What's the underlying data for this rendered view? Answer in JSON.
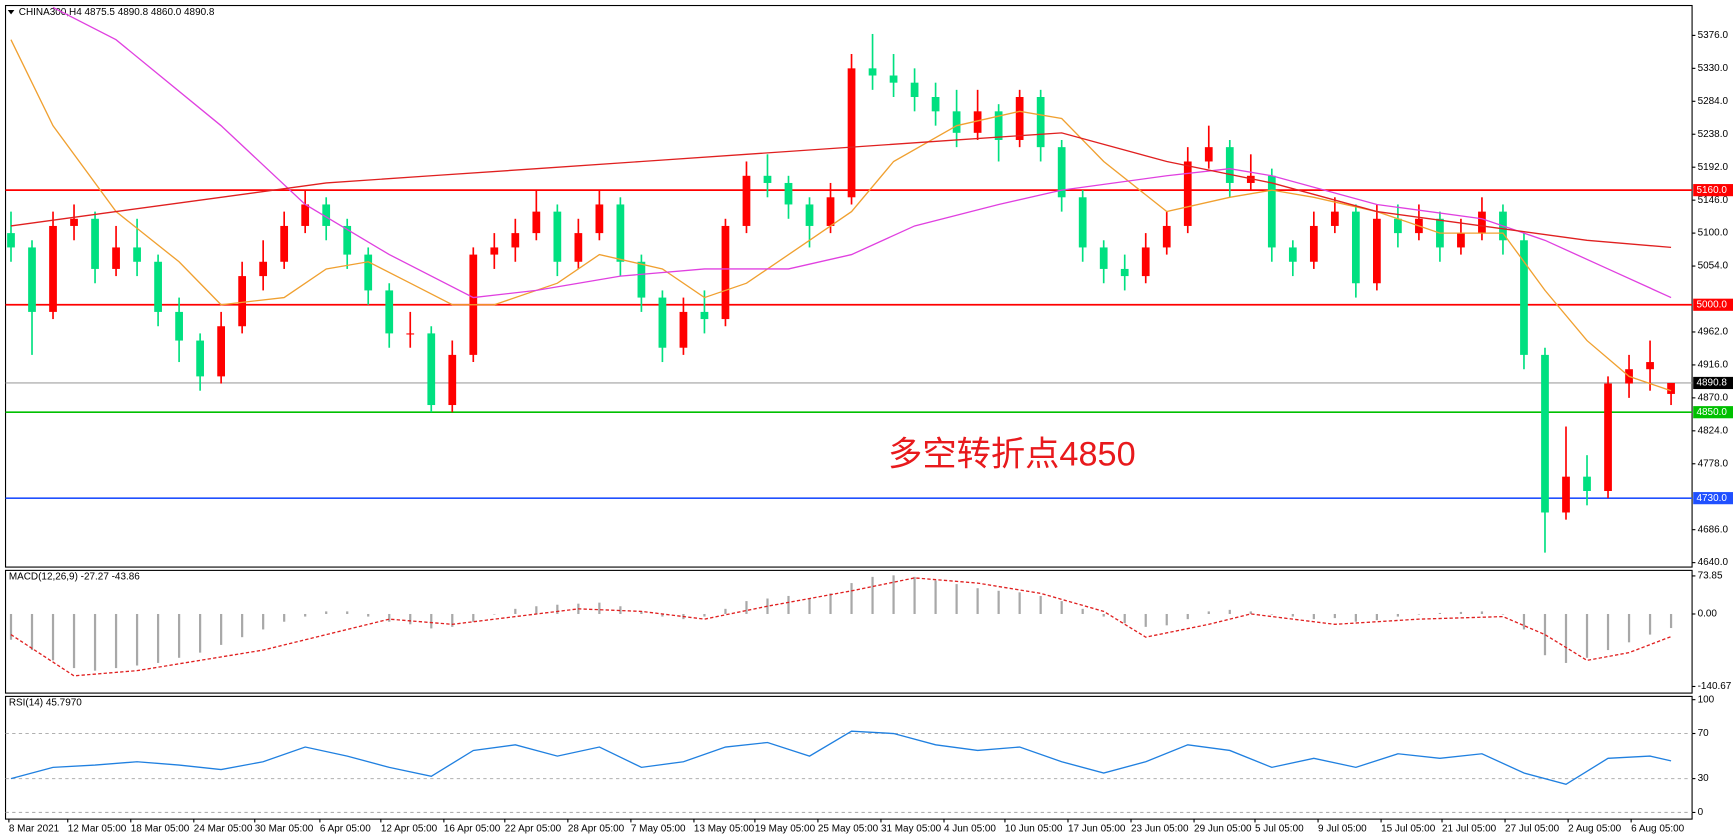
{
  "chart_data": [
    {
      "type": "candlestick",
      "title": "CHINA300,H4  4875.5 4890.8 4860.0 4890.8",
      "annotation": "多空转折点4850",
      "annotation_color": "#e8191c",
      "up_color": "#ff0000",
      "down_color": "#00e080",
      "xlim": [
        -0.26,
        80
      ],
      "ylim": [
        4633.8,
        5417.7
      ],
      "yticks": [
        {
          "value": 5376,
          "label": "5376.0"
        },
        {
          "value": 5330,
          "label": "5330.0"
        },
        {
          "value": 5284,
          "label": "5284.0"
        },
        {
          "value": 5238,
          "label": "5238.0"
        },
        {
          "value": 5192,
          "label": "5192.0"
        },
        {
          "value": 5146,
          "label": "5146.0"
        },
        {
          "value": 5100,
          "label": "5100.0"
        },
        {
          "value": 5054,
          "label": "5054.0"
        },
        {
          "value": 4962,
          "label": "4962.0"
        },
        {
          "value": 4916,
          "label": "4916.0"
        },
        {
          "value": 4870,
          "label": "4870.0"
        },
        {
          "value": 4824,
          "label": "4824.0"
        },
        {
          "value": 4778,
          "label": "4778.0"
        },
        {
          "value": 4686,
          "label": "4686.0"
        },
        {
          "value": 4640,
          "label": "4640.0"
        }
      ],
      "hlines": [
        {
          "value": 5160,
          "label": "5160.0",
          "color": "#ff0000",
          "label_fill": "#ff0000"
        },
        {
          "value": 5000,
          "label": "5000.0",
          "color": "#ff0000",
          "label_fill": "#ff0000"
        },
        {
          "value": 4890.8,
          "label": "4890.8",
          "color": "#a0a0a0",
          "label_fill": "#000000"
        },
        {
          "value": 4850,
          "label": "4850.0",
          "color": "#00c000",
          "label_fill": "#00c000"
        },
        {
          "value": 4730,
          "label": "4730.0",
          "color": "#2050ff",
          "label_fill": "#2050ff"
        }
      ],
      "xticks": [
        {
          "value": -0.1,
          "label": "8 Mar 2021"
        },
        {
          "value": 2.7,
          "label": "12 Mar 05:00"
        },
        {
          "value": 5.7,
          "label": "18 Mar 05:00"
        },
        {
          "value": 8.7,
          "label": "24 Mar 05:00"
        },
        {
          "value": 11.6,
          "label": "30 Mar 05:00"
        },
        {
          "value": 14.7,
          "label": "6 Apr 05:00"
        },
        {
          "value": 17.6,
          "label": "12 Apr 05:00"
        },
        {
          "value": 20.6,
          "label": "16 Apr 05:00"
        },
        {
          "value": 23.5,
          "label": "22 Apr 05:00"
        },
        {
          "value": 26.5,
          "label": "28 Apr 05:00"
        },
        {
          "value": 29.5,
          "label": "7 May 05:00"
        },
        {
          "value": 32.5,
          "label": "13 May 05:00"
        },
        {
          "value": 35.4,
          "label": "19 May 05:00"
        },
        {
          "value": 38.4,
          "label": "25 May 05:00"
        },
        {
          "value": 41.4,
          "label": "31 May 05:00"
        },
        {
          "value": 44.4,
          "label": "4 Jun 05:00"
        },
        {
          "value": 47.3,
          "label": "10 Jun 05:00"
        },
        {
          "value": 50.3,
          "label": "17 Jun 05:00"
        },
        {
          "value": 53.3,
          "label": "23 Jun 05:00"
        },
        {
          "value": 56.3,
          "label": "29 Jun 05:00"
        },
        {
          "value": 59.2,
          "label": "5 Jul 05:00"
        },
        {
          "value": 62.2,
          "label": "9 Jul 05:00"
        },
        {
          "value": 65.2,
          "label": "15 Jul 05:00"
        },
        {
          "value": 68.1,
          "label": "21 Jul 05:00"
        },
        {
          "value": 71.1,
          "label": "27 Jul 05:00"
        },
        {
          "value": 74.1,
          "label": "2 Aug 05:00"
        },
        {
          "value": 77.1,
          "label": "6 Aug 05:00"
        }
      ],
      "ohlc": [
        [
          5100,
          5130,
          5060,
          5080
        ],
        [
          5080,
          5090,
          4930,
          4990
        ],
        [
          4990,
          5130,
          4980,
          5110
        ],
        [
          5110,
          5140,
          5090,
          5120
        ],
        [
          5120,
          5130,
          5030,
          5050
        ],
        [
          5050,
          5110,
          5040,
          5080
        ],
        [
          5080,
          5120,
          5040,
          5060
        ],
        [
          5060,
          5070,
          4970,
          4990
        ],
        [
          4990,
          5010,
          4920,
          4950
        ],
        [
          4950,
          4960,
          4880,
          4900
        ],
        [
          4900,
          4990,
          4890,
          4970
        ],
        [
          4970,
          5060,
          4960,
          5040
        ],
        [
          5040,
          5090,
          5020,
          5060
        ],
        [
          5060,
          5130,
          5050,
          5110
        ],
        [
          5110,
          5160,
          5100,
          5140
        ],
        [
          5140,
          5150,
          5090,
          5110
        ],
        [
          5110,
          5120,
          5050,
          5070
        ],
        [
          5070,
          5080,
          5000,
          5020
        ],
        [
          5020,
          5030,
          4940,
          4960
        ],
        [
          4960,
          4990,
          4940,
          4960
        ],
        [
          4960,
          4970,
          4850,
          4860
        ],
        [
          4860,
          4950,
          4850,
          4930
        ],
        [
          4930,
          5080,
          4920,
          5070
        ],
        [
          5070,
          5100,
          5050,
          5080
        ],
        [
          5080,
          5120,
          5060,
          5100
        ],
        [
          5100,
          5160,
          5090,
          5130
        ],
        [
          5130,
          5140,
          5040,
          5060
        ],
        [
          5060,
          5120,
          5050,
          5100
        ],
        [
          5100,
          5160,
          5090,
          5140
        ],
        [
          5140,
          5150,
          5040,
          5060
        ],
        [
          5060,
          5070,
          4990,
          5010
        ],
        [
          5010,
          5020,
          4920,
          4940
        ],
        [
          4940,
          5010,
          4930,
          4990
        ],
        [
          4990,
          5020,
          4960,
          4980
        ],
        [
          4980,
          5120,
          4970,
          5110
        ],
        [
          5110,
          5200,
          5100,
          5180
        ],
        [
          5180,
          5210,
          5150,
          5170
        ],
        [
          5170,
          5180,
          5120,
          5140
        ],
        [
          5140,
          5150,
          5080,
          5110
        ],
        [
          5110,
          5170,
          5100,
          5150
        ],
        [
          5150,
          5350,
          5140,
          5330
        ],
        [
          5330,
          5378,
          5300,
          5320
        ],
        [
          5320,
          5350,
          5290,
          5310
        ],
        [
          5310,
          5330,
          5270,
          5290
        ],
        [
          5290,
          5310,
          5250,
          5270
        ],
        [
          5270,
          5300,
          5220,
          5240
        ],
        [
          5240,
          5300,
          5230,
          5270
        ],
        [
          5270,
          5280,
          5200,
          5230
        ],
        [
          5230,
          5300,
          5220,
          5290
        ],
        [
          5290,
          5300,
          5200,
          5220
        ],
        [
          5220,
          5230,
          5130,
          5150
        ],
        [
          5150,
          5160,
          5060,
          5080
        ],
        [
          5080,
          5090,
          5030,
          5050
        ],
        [
          5050,
          5070,
          5020,
          5040
        ],
        [
          5040,
          5100,
          5030,
          5080
        ],
        [
          5080,
          5130,
          5070,
          5110
        ],
        [
          5110,
          5220,
          5100,
          5200
        ],
        [
          5200,
          5250,
          5190,
          5220
        ],
        [
          5220,
          5230,
          5150,
          5170
        ],
        [
          5170,
          5210,
          5160,
          5180
        ],
        [
          5180,
          5190,
          5060,
          5080
        ],
        [
          5080,
          5090,
          5040,
          5060
        ],
        [
          5060,
          5130,
          5050,
          5110
        ],
        [
          5110,
          5150,
          5100,
          5130
        ],
        [
          5130,
          5140,
          5010,
          5030
        ],
        [
          5030,
          5140,
          5020,
          5120
        ],
        [
          5120,
          5140,
          5080,
          5100
        ],
        [
          5100,
          5140,
          5090,
          5120
        ],
        [
          5120,
          5130,
          5060,
          5080
        ],
        [
          5080,
          5120,
          5070,
          5100
        ],
        [
          5100,
          5150,
          5090,
          5130
        ],
        [
          5130,
          5140,
          5070,
          5090
        ],
        [
          5090,
          5100,
          4910,
          4930
        ],
        [
          4930,
          4940,
          4654,
          4710
        ],
        [
          4710,
          4830,
          4700,
          4760
        ],
        [
          4760,
          4790,
          4720,
          4740
        ],
        [
          4740,
          4900,
          4730,
          4890
        ],
        [
          4890,
          4930,
          4870,
          4910
        ],
        [
          4910,
          4950,
          4880,
          4920
        ],
        [
          4875.5,
          4890.8,
          4860.0,
          4890.8
        ]
      ],
      "overlays": [
        {
          "color": "#f0a030",
          "x": [
            0,
            2,
            5,
            8,
            10,
            13,
            15,
            17,
            19,
            21,
            23,
            26,
            28,
            31,
            33,
            35,
            38,
            40,
            42,
            45,
            48,
            50,
            52,
            55,
            58,
            60,
            62,
            65,
            68,
            71,
            73,
            75,
            77,
            79
          ],
          "values": [
            5370,
            5250,
            5130,
            5060,
            5000,
            5010,
            5050,
            5060,
            5030,
            5000,
            5000,
            5030,
            5070,
            5050,
            5010,
            5030,
            5090,
            5130,
            5200,
            5250,
            5270,
            5260,
            5200,
            5130,
            5150,
            5160,
            5150,
            5130,
            5100,
            5100,
            5020,
            4950,
            4900,
            4880
          ]
        },
        {
          "color": "#e040e0",
          "x": [
            2,
            5,
            10,
            14,
            18,
            22,
            25,
            29,
            33,
            37,
            40,
            43,
            47,
            50,
            55,
            58,
            60,
            65,
            70,
            73,
            76,
            79
          ],
          "values": [
            5415,
            5370,
            5250,
            5140,
            5070,
            5010,
            5020,
            5040,
            5050,
            5050,
            5070,
            5110,
            5140,
            5160,
            5180,
            5190,
            5180,
            5140,
            5120,
            5090,
            5050,
            5010
          ]
        },
        {
          "color": "#e02020",
          "x": [
            0,
            5,
            10,
            15,
            20,
            25,
            30,
            35,
            40,
            45,
            50,
            55,
            60,
            65,
            70,
            75,
            79
          ],
          "values": [
            5110,
            5130,
            5150,
            5170,
            5180,
            5190,
            5200,
            5210,
            5220,
            5230,
            5240,
            5200,
            5170,
            5130,
            5110,
            5090,
            5080
          ]
        }
      ]
    },
    {
      "type": "bar",
      "title": "MACD(12,26,9) -27.27 -43.86",
      "color": "#a8a8a8",
      "ylim": [
        -153.5,
        84.6
      ],
      "yticks": [
        73.85,
        {
          "value": 0,
          "label": "0.00"
        },
        -140.67
      ],
      "values": [
        -50,
        -70,
        -90,
        -105,
        -110,
        -105,
        -100,
        -95,
        -85,
        -75,
        -60,
        -45,
        -30,
        -15,
        -5,
        5,
        5,
        -5,
        -15,
        -20,
        -28,
        -25,
        -15,
        0,
        10,
        15,
        18,
        20,
        22,
        15,
        5,
        -5,
        -10,
        -5,
        10,
        25,
        30,
        35,
        30,
        40,
        60,
        72,
        75,
        72,
        65,
        58,
        50,
        45,
        42,
        35,
        25,
        10,
        -5,
        -18,
        -25,
        -22,
        -10,
        5,
        8,
        5,
        0,
        -5,
        -10,
        -8,
        -15,
        -12,
        -5,
        0,
        2,
        4,
        5,
        0,
        -30,
        -80,
        -95,
        -85,
        -70,
        -55,
        -40,
        -27.27
      ],
      "overlays": [
        {
          "color": "#e02020",
          "dashed": true,
          "x": [
            0,
            3,
            6,
            9,
            12,
            15,
            18,
            21,
            24,
            27,
            30,
            33,
            36,
            40,
            43,
            46,
            49,
            52,
            54,
            57,
            59,
            63,
            67,
            71,
            73,
            75,
            77,
            79
          ],
          "values": [
            -40,
            -120,
            -110,
            -90,
            -70,
            -40,
            -10,
            -20,
            -5,
            10,
            5,
            -10,
            15,
            45,
            70,
            60,
            40,
            5,
            -45,
            -20,
            0,
            -20,
            -10,
            -5,
            -40,
            -90,
            -75,
            -43.86
          ]
        }
      ]
    },
    {
      "type": "line",
      "title": "RSI(14) 45.7970",
      "grid": "dashed",
      "ylim": [
        -5.9,
        102.9
      ],
      "yticks": [
        100,
        70,
        30,
        0
      ],
      "overlays": [
        {
          "color": "#2080e0",
          "x": [
            0,
            2,
            4,
            6,
            8,
            10,
            12,
            14,
            16,
            18,
            20,
            22,
            24,
            26,
            28,
            30,
            32,
            34,
            36,
            38,
            40,
            42,
            44,
            46,
            48,
            50,
            52,
            54,
            56,
            58,
            60,
            62,
            64,
            66,
            68,
            70,
            72,
            74,
            76,
            78,
            79
          ],
          "values": [
            30,
            40,
            42,
            45,
            42,
            38,
            45,
            58,
            50,
            40,
            32,
            55,
            60,
            50,
            58,
            40,
            45,
            58,
            62,
            50,
            72,
            70,
            60,
            55,
            58,
            45,
            35,
            45,
            60,
            55,
            40,
            48,
            40,
            52,
            48,
            52,
            35,
            25,
            48,
            50,
            45.797
          ]
        }
      ]
    }
  ]
}
